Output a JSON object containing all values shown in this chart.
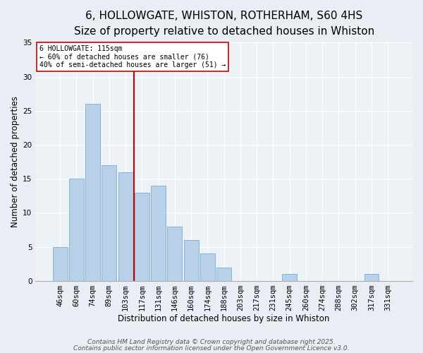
{
  "title": "6, HOLLOWGATE, WHISTON, ROTHERHAM, S60 4HS",
  "subtitle": "Size of property relative to detached houses in Whiston",
  "xlabel": "Distribution of detached houses by size in Whiston",
  "ylabel": "Number of detached properties",
  "bin_labels": [
    "46sqm",
    "60sqm",
    "74sqm",
    "89sqm",
    "103sqm",
    "117sqm",
    "131sqm",
    "146sqm",
    "160sqm",
    "174sqm",
    "188sqm",
    "203sqm",
    "217sqm",
    "231sqm",
    "245sqm",
    "260sqm",
    "274sqm",
    "288sqm",
    "302sqm",
    "317sqm",
    "331sqm"
  ],
  "bar_heights": [
    5,
    15,
    26,
    17,
    16,
    13,
    14,
    8,
    6,
    4,
    2,
    0,
    0,
    0,
    1,
    0,
    0,
    0,
    0,
    1,
    0
  ],
  "bar_color": "#b8d0e8",
  "bar_edgecolor": "#7aaed4",
  "vline_x_index": 5,
  "vline_color": "#cc0000",
  "annotation_text": "6 HOLLOWGATE: 115sqm\n← 60% of detached houses are smaller (76)\n40% of semi-detached houses are larger (51) →",
  "annotation_box_edgecolor": "#cc0000",
  "ylim": [
    0,
    35
  ],
  "yticks": [
    0,
    5,
    10,
    15,
    20,
    25,
    30,
    35
  ],
  "footer1": "Contains HM Land Registry data © Crown copyright and database right 2025.",
  "footer2": "Contains public sector information licensed under the Open Government Licence v3.0.",
  "bg_color": "#e8eef4",
  "plot_bg_color": "#edf2f7",
  "grid_color": "#ffffff",
  "title_fontsize": 11,
  "subtitle_fontsize": 9.5,
  "label_fontsize": 8.5,
  "tick_fontsize": 7.5,
  "footer_fontsize": 6.5,
  "annot_fontsize": 7
}
